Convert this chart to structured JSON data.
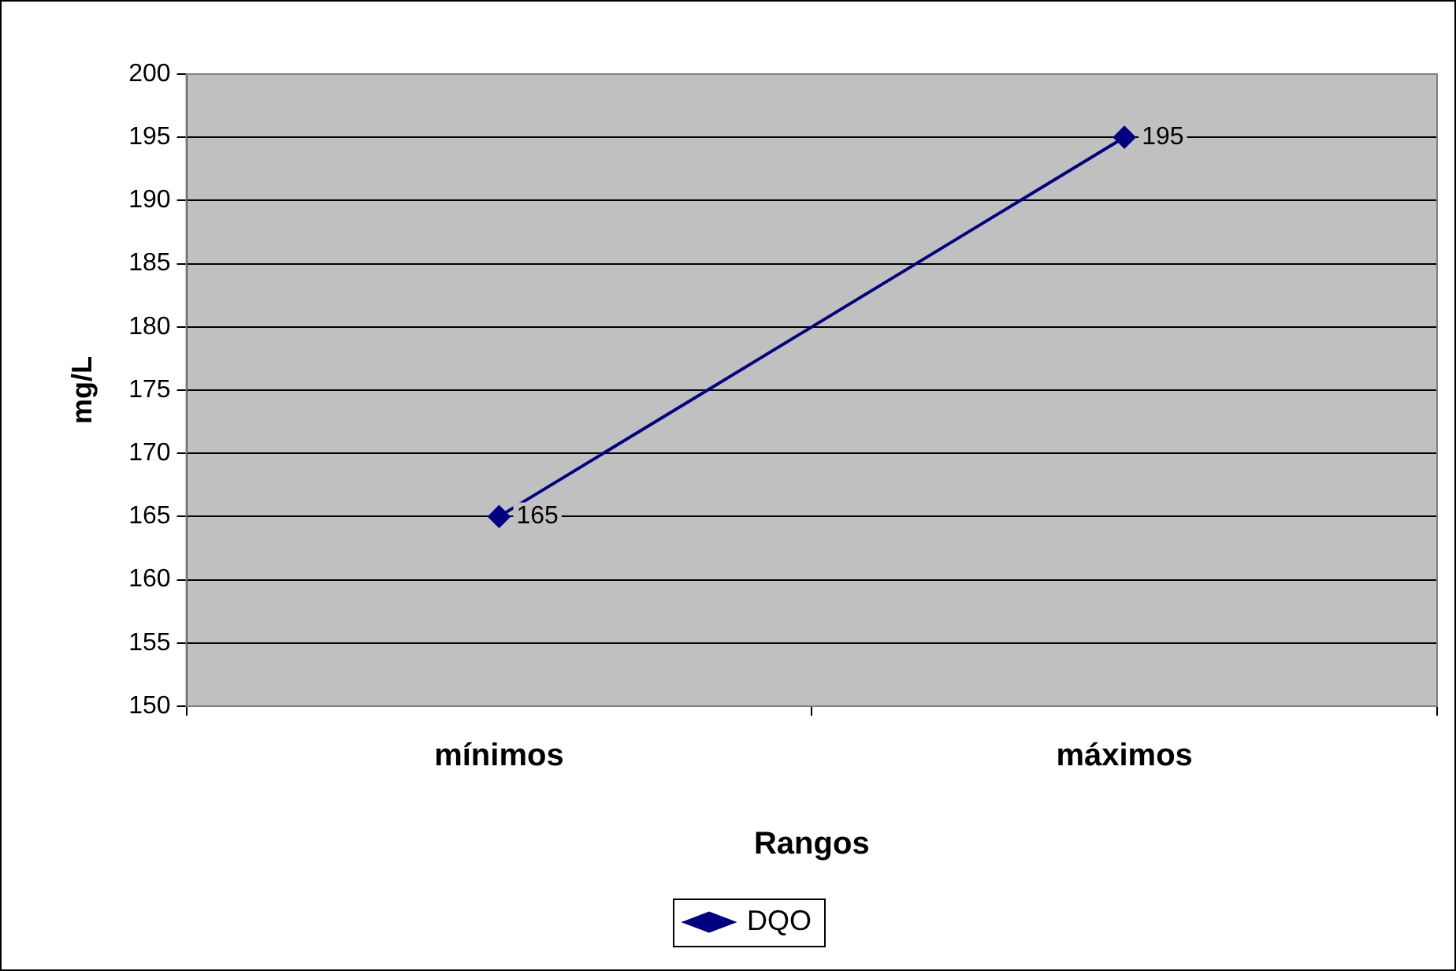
{
  "chart_data": {
    "type": "line",
    "xlabel": "Rangos",
    "ylabel": "mg/L",
    "categories": [
      "mínimos",
      "máximos"
    ],
    "series": [
      {
        "name": "DQO",
        "color": "#000080",
        "values": [
          165,
          195
        ]
      }
    ],
    "ylim": [
      150,
      200
    ],
    "yticks": [
      150,
      155,
      160,
      165,
      170,
      175,
      180,
      185,
      190,
      195,
      200
    ],
    "grid": "y",
    "legend": "bottom",
    "marker": "diamond",
    "line_style": "solid",
    "data_labels": true
  }
}
